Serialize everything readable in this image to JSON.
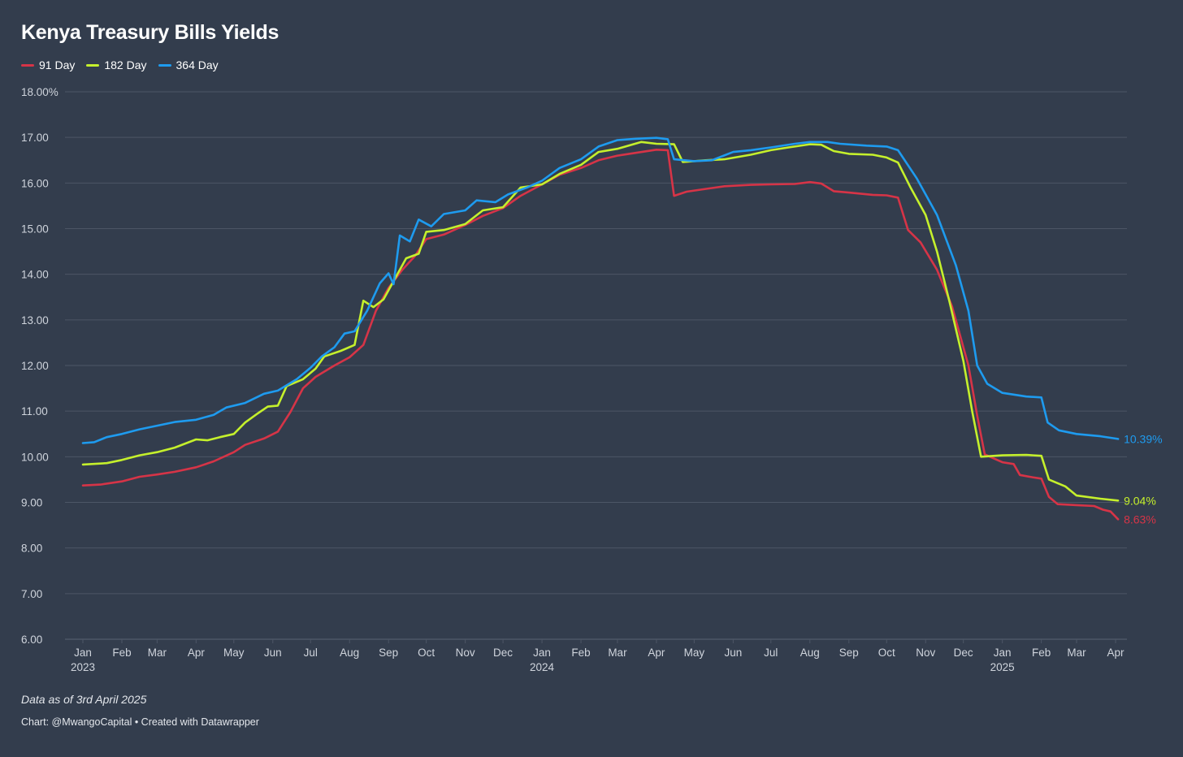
{
  "colors": {
    "background": "#333d4d",
    "grid": "#4d5666",
    "tick_text": "#cfd4dc"
  },
  "chart_data": {
    "type": "line",
    "title": "Kenya Treasury Bills Yields",
    "xlabel": "",
    "ylabel": "",
    "ylim": [
      6,
      18
    ],
    "xlim": [
      "2023-01-01",
      "2025-04-03"
    ],
    "grid": true,
    "legend_position": "top-left",
    "y_ticks": [
      {
        "value": 18,
        "label": "18.00%"
      },
      {
        "value": 17,
        "label": "17.00"
      },
      {
        "value": 16,
        "label": "16.00"
      },
      {
        "value": 15,
        "label": "15.00"
      },
      {
        "value": 14,
        "label": "14.00"
      },
      {
        "value": 13,
        "label": "13.00"
      },
      {
        "value": 12,
        "label": "12.00"
      },
      {
        "value": 11,
        "label": "11.00"
      },
      {
        "value": 10,
        "label": "10.00"
      },
      {
        "value": 9,
        "label": "9.00"
      },
      {
        "value": 8,
        "label": "8.00"
      },
      {
        "value": 7,
        "label": "7.00"
      },
      {
        "value": 6,
        "label": "6.00"
      }
    ],
    "x_ticks": [
      {
        "date": "2023-01-01",
        "label": "Jan",
        "year": "2023"
      },
      {
        "date": "2023-02-01",
        "label": "Feb"
      },
      {
        "date": "2023-03-01",
        "label": "Mar"
      },
      {
        "date": "2023-04-01",
        "label": "Apr"
      },
      {
        "date": "2023-05-01",
        "label": "May"
      },
      {
        "date": "2023-06-01",
        "label": "Jun"
      },
      {
        "date": "2023-07-01",
        "label": "Jul"
      },
      {
        "date": "2023-08-01",
        "label": "Aug"
      },
      {
        "date": "2023-09-01",
        "label": "Sep"
      },
      {
        "date": "2023-10-01",
        "label": "Oct"
      },
      {
        "date": "2023-11-01",
        "label": "Nov"
      },
      {
        "date": "2023-12-01",
        "label": "Dec"
      },
      {
        "date": "2024-01-01",
        "label": "Jan",
        "year": "2024"
      },
      {
        "date": "2024-02-01",
        "label": "Feb"
      },
      {
        "date": "2024-03-01",
        "label": "Mar"
      },
      {
        "date": "2024-04-01",
        "label": "Apr"
      },
      {
        "date": "2024-05-01",
        "label": "May"
      },
      {
        "date": "2024-06-01",
        "label": "Jun"
      },
      {
        "date": "2024-07-01",
        "label": "Jul"
      },
      {
        "date": "2024-08-01",
        "label": "Aug"
      },
      {
        "date": "2024-09-01",
        "label": "Sep"
      },
      {
        "date": "2024-10-01",
        "label": "Oct"
      },
      {
        "date": "2024-11-01",
        "label": "Nov"
      },
      {
        "date": "2024-12-01",
        "label": "Dec"
      },
      {
        "date": "2025-01-01",
        "label": "Jan",
        "year": "2025"
      },
      {
        "date": "2025-02-01",
        "label": "Feb"
      },
      {
        "date": "2025-03-01",
        "label": "Mar"
      },
      {
        "date": "2025-04-01",
        "label": "Apr"
      }
    ],
    "series": [
      {
        "name": "91 Day",
        "color": "#d63447",
        "end_label": "8.63%",
        "points": [
          [
            "2023-01-01",
            9.37
          ],
          [
            "2023-01-15",
            9.39
          ],
          [
            "2023-02-01",
            9.46
          ],
          [
            "2023-02-15",
            9.56
          ],
          [
            "2023-03-01",
            9.61
          ],
          [
            "2023-03-15",
            9.67
          ],
          [
            "2023-04-01",
            9.77
          ],
          [
            "2023-04-15",
            9.9
          ],
          [
            "2023-05-01",
            10.1
          ],
          [
            "2023-05-10",
            10.26
          ],
          [
            "2023-05-25",
            10.4
          ],
          [
            "2023-06-05",
            10.55
          ],
          [
            "2023-06-15",
            10.98
          ],
          [
            "2023-06-25",
            11.5
          ],
          [
            "2023-07-05",
            11.75
          ],
          [
            "2023-07-20",
            12.0
          ],
          [
            "2023-08-01",
            12.18
          ],
          [
            "2023-08-12",
            12.45
          ],
          [
            "2023-08-22",
            13.2
          ],
          [
            "2023-09-01",
            13.7
          ],
          [
            "2023-09-12",
            14.1
          ],
          [
            "2023-09-22",
            14.4
          ],
          [
            "2023-10-01",
            14.77
          ],
          [
            "2023-10-15",
            14.87
          ],
          [
            "2023-11-01",
            15.08
          ],
          [
            "2023-11-15",
            15.28
          ],
          [
            "2023-12-01",
            15.45
          ],
          [
            "2023-12-15",
            15.72
          ],
          [
            "2024-01-01",
            15.97
          ],
          [
            "2024-01-15",
            16.18
          ],
          [
            "2024-02-01",
            16.33
          ],
          [
            "2024-02-15",
            16.5
          ],
          [
            "2024-03-01",
            16.6
          ],
          [
            "2024-03-15",
            16.66
          ],
          [
            "2024-04-01",
            16.73
          ],
          [
            "2024-04-10",
            16.72
          ],
          [
            "2024-04-15",
            15.72
          ],
          [
            "2024-04-25",
            15.81
          ],
          [
            "2024-05-10",
            15.87
          ],
          [
            "2024-05-25",
            15.93
          ],
          [
            "2024-06-15",
            15.96
          ],
          [
            "2024-07-01",
            15.97
          ],
          [
            "2024-07-20",
            15.98
          ],
          [
            "2024-08-01",
            16.02
          ],
          [
            "2024-08-10",
            15.99
          ],
          [
            "2024-08-20",
            15.82
          ],
          [
            "2024-09-01",
            15.79
          ],
          [
            "2024-09-20",
            15.74
          ],
          [
            "2024-10-01",
            15.73
          ],
          [
            "2024-10-10",
            15.68
          ],
          [
            "2024-10-18",
            14.97
          ],
          [
            "2024-10-28",
            14.7
          ],
          [
            "2024-11-10",
            14.1
          ],
          [
            "2024-11-22",
            13.3
          ],
          [
            "2024-12-05",
            12.0
          ],
          [
            "2024-12-12",
            10.9
          ],
          [
            "2024-12-18",
            10.05
          ],
          [
            "2025-01-01",
            9.88
          ],
          [
            "2025-01-10",
            9.84
          ],
          [
            "2025-01-15",
            9.6
          ],
          [
            "2025-01-25",
            9.55
          ],
          [
            "2025-02-01",
            9.52
          ],
          [
            "2025-02-07",
            9.12
          ],
          [
            "2025-02-14",
            8.96
          ],
          [
            "2025-03-01",
            8.94
          ],
          [
            "2025-03-15",
            8.92
          ],
          [
            "2025-03-22",
            8.84
          ],
          [
            "2025-03-28",
            8.8
          ],
          [
            "2025-04-03",
            8.63
          ]
        ]
      },
      {
        "name": "182 Day",
        "color": "#c5f02c",
        "end_label": "9.04%",
        "points": [
          [
            "2023-01-01",
            9.83
          ],
          [
            "2023-01-20",
            9.86
          ],
          [
            "2023-02-01",
            9.93
          ],
          [
            "2023-02-15",
            10.03
          ],
          [
            "2023-03-01",
            10.1
          ],
          [
            "2023-03-15",
            10.2
          ],
          [
            "2023-04-01",
            10.38
          ],
          [
            "2023-04-10",
            10.36
          ],
          [
            "2023-04-20",
            10.43
          ],
          [
            "2023-05-01",
            10.5
          ],
          [
            "2023-05-10",
            10.75
          ],
          [
            "2023-05-20",
            10.95
          ],
          [
            "2023-05-28",
            11.1
          ],
          [
            "2023-06-05",
            11.12
          ],
          [
            "2023-06-12",
            11.55
          ],
          [
            "2023-06-25",
            11.7
          ],
          [
            "2023-07-05",
            11.93
          ],
          [
            "2023-07-12",
            12.2
          ],
          [
            "2023-07-25",
            12.32
          ],
          [
            "2023-08-05",
            12.45
          ],
          [
            "2023-08-12",
            13.42
          ],
          [
            "2023-08-20",
            13.28
          ],
          [
            "2023-08-28",
            13.45
          ],
          [
            "2023-09-05",
            13.85
          ],
          [
            "2023-09-15",
            14.35
          ],
          [
            "2023-09-25",
            14.45
          ],
          [
            "2023-10-01",
            14.93
          ],
          [
            "2023-10-15",
            14.97
          ],
          [
            "2023-11-01",
            15.1
          ],
          [
            "2023-11-15",
            15.4
          ],
          [
            "2023-12-01",
            15.47
          ],
          [
            "2023-12-15",
            15.9
          ],
          [
            "2024-01-01",
            15.97
          ],
          [
            "2024-01-15",
            16.2
          ],
          [
            "2024-02-01",
            16.4
          ],
          [
            "2024-02-15",
            16.68
          ],
          [
            "2024-03-01",
            16.75
          ],
          [
            "2024-03-20",
            16.9
          ],
          [
            "2024-04-01",
            16.86
          ],
          [
            "2024-04-15",
            16.85
          ],
          [
            "2024-04-22",
            16.46
          ],
          [
            "2024-05-10",
            16.5
          ],
          [
            "2024-05-25",
            16.52
          ],
          [
            "2024-06-15",
            16.62
          ],
          [
            "2024-07-01",
            16.72
          ],
          [
            "2024-07-15",
            16.78
          ],
          [
            "2024-08-01",
            16.85
          ],
          [
            "2024-08-10",
            16.84
          ],
          [
            "2024-08-20",
            16.7
          ],
          [
            "2024-09-01",
            16.64
          ],
          [
            "2024-09-20",
            16.62
          ],
          [
            "2024-10-01",
            16.56
          ],
          [
            "2024-10-10",
            16.45
          ],
          [
            "2024-10-20",
            15.9
          ],
          [
            "2024-11-01",
            15.3
          ],
          [
            "2024-11-10",
            14.5
          ],
          [
            "2024-11-20",
            13.4
          ],
          [
            "2024-12-01",
            12.1
          ],
          [
            "2024-12-08",
            11.0
          ],
          [
            "2024-12-15",
            10.0
          ],
          [
            "2025-01-01",
            10.03
          ],
          [
            "2025-01-20",
            10.04
          ],
          [
            "2025-02-01",
            10.02
          ],
          [
            "2025-02-07",
            9.5
          ],
          [
            "2025-02-20",
            9.35
          ],
          [
            "2025-03-01",
            9.15
          ],
          [
            "2025-03-20",
            9.08
          ],
          [
            "2025-04-03",
            9.04
          ]
        ]
      },
      {
        "name": "364 Day",
        "color": "#1e9bef",
        "end_label": "10.39%",
        "points": [
          [
            "2023-01-01",
            10.3
          ],
          [
            "2023-01-10",
            10.32
          ],
          [
            "2023-01-20",
            10.43
          ],
          [
            "2023-02-01",
            10.5
          ],
          [
            "2023-02-15",
            10.6
          ],
          [
            "2023-03-01",
            10.68
          ],
          [
            "2023-03-15",
            10.76
          ],
          [
            "2023-04-01",
            10.81
          ],
          [
            "2023-04-15",
            10.92
          ],
          [
            "2023-04-25",
            11.08
          ],
          [
            "2023-05-10",
            11.18
          ],
          [
            "2023-05-25",
            11.38
          ],
          [
            "2023-06-05",
            11.45
          ],
          [
            "2023-06-20",
            11.7
          ],
          [
            "2023-07-01",
            11.95
          ],
          [
            "2023-07-10",
            12.2
          ],
          [
            "2023-07-20",
            12.4
          ],
          [
            "2023-07-28",
            12.7
          ],
          [
            "2023-08-05",
            12.75
          ],
          [
            "2023-08-15",
            13.2
          ],
          [
            "2023-08-25",
            13.8
          ],
          [
            "2023-09-01",
            14.02
          ],
          [
            "2023-09-05",
            13.78
          ],
          [
            "2023-09-10",
            14.85
          ],
          [
            "2023-09-18",
            14.72
          ],
          [
            "2023-09-25",
            15.2
          ],
          [
            "2023-10-05",
            15.05
          ],
          [
            "2023-10-15",
            15.32
          ],
          [
            "2023-11-01",
            15.4
          ],
          [
            "2023-11-10",
            15.62
          ],
          [
            "2023-11-25",
            15.58
          ],
          [
            "2023-12-05",
            15.75
          ],
          [
            "2023-12-20",
            15.9
          ],
          [
            "2024-01-01",
            16.05
          ],
          [
            "2024-01-15",
            16.33
          ],
          [
            "2024-02-01",
            16.52
          ],
          [
            "2024-02-15",
            16.8
          ],
          [
            "2024-03-01",
            16.94
          ],
          [
            "2024-03-15",
            16.97
          ],
          [
            "2024-04-01",
            16.99
          ],
          [
            "2024-04-10",
            16.96
          ],
          [
            "2024-04-15",
            16.52
          ],
          [
            "2024-05-01",
            16.48
          ],
          [
            "2024-05-15",
            16.5
          ],
          [
            "2024-06-01",
            16.68
          ],
          [
            "2024-06-15",
            16.72
          ],
          [
            "2024-07-01",
            16.78
          ],
          [
            "2024-07-20",
            16.86
          ],
          [
            "2024-08-01",
            16.9
          ],
          [
            "2024-08-15",
            16.9
          ],
          [
            "2024-08-25",
            16.86
          ],
          [
            "2024-09-15",
            16.82
          ],
          [
            "2024-10-01",
            16.8
          ],
          [
            "2024-10-10",
            16.72
          ],
          [
            "2024-10-25",
            16.1
          ],
          [
            "2024-11-10",
            15.3
          ],
          [
            "2024-11-25",
            14.2
          ],
          [
            "2024-12-05",
            13.2
          ],
          [
            "2024-12-12",
            12.0
          ],
          [
            "2024-12-20",
            11.6
          ],
          [
            "2025-01-01",
            11.4
          ],
          [
            "2025-01-20",
            11.32
          ],
          [
            "2025-02-01",
            11.3
          ],
          [
            "2025-02-06",
            10.75
          ],
          [
            "2025-02-15",
            10.58
          ],
          [
            "2025-03-01",
            10.5
          ],
          [
            "2025-03-20",
            10.45
          ],
          [
            "2025-04-03",
            10.39
          ]
        ]
      }
    ]
  },
  "footer": {
    "note": "Data as of 3rd April 2025",
    "credit": "Chart: @MwangoCapital • Created with Datawrapper"
  }
}
